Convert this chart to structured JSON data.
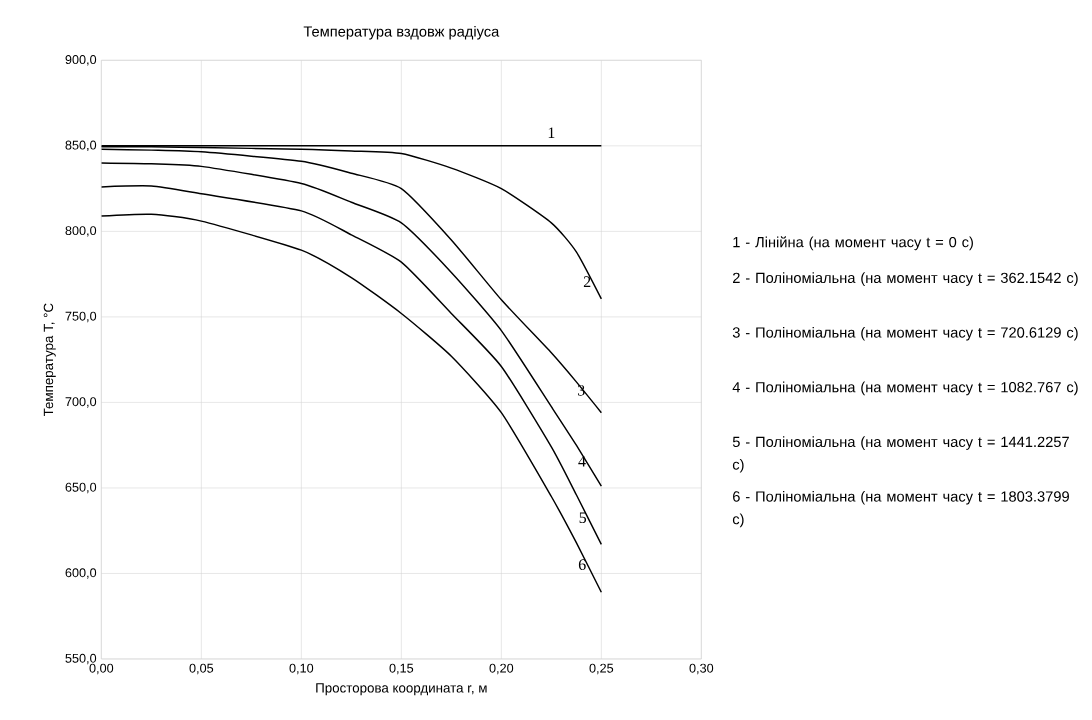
{
  "chart_data": {
    "type": "line",
    "title": "Температура вздовж радіуса",
    "xlabel": "Просторова координата r, м",
    "ylabel": "Температура T, °C",
    "x": [
      0,
      0.025,
      0.05,
      0.1,
      0.125,
      0.15,
      0.175,
      0.2,
      0.225,
      0.2375,
      0.25
    ],
    "series": [
      {
        "name": "1",
        "color": "#000000",
        "values": [
          850,
          850,
          850,
          850,
          850,
          850,
          850,
          850,
          850,
          850,
          850
        ]
      },
      {
        "name": "2",
        "color": "#000000",
        "values": [
          849.5,
          849.5,
          849,
          848,
          847,
          845.5,
          837,
          825,
          805,
          788,
          760.5
        ]
      },
      {
        "name": "3",
        "color": "#000000",
        "values": [
          848,
          847.5,
          846.5,
          841,
          834,
          825,
          795,
          760,
          729,
          712,
          694
        ]
      },
      {
        "name": "4",
        "color": "#000000",
        "values": [
          840,
          839.5,
          838,
          828,
          817,
          805,
          776,
          742,
          697.5,
          675,
          651
        ]
      },
      {
        "name": "5",
        "color": "#000000",
        "values": [
          826,
          826.5,
          822,
          812,
          798,
          782,
          752,
          721,
          674,
          646,
          617
        ]
      },
      {
        "name": "6",
        "color": "#000000",
        "values": [
          809,
          810,
          806,
          789,
          773,
          752,
          727,
          694,
          645,
          618,
          589
        ]
      }
    ],
    "xlim": [
      0,
      0.3
    ],
    "ylim": [
      550,
      900
    ],
    "xticks": [
      {
        "value": 0,
        "label": "0,00"
      },
      {
        "value": 0.05,
        "label": "0,05"
      },
      {
        "value": 0.1,
        "label": "0,10"
      },
      {
        "value": 0.15,
        "label": "0,15"
      },
      {
        "value": 0.2,
        "label": "0,20"
      },
      {
        "value": 0.25,
        "label": "0,25"
      },
      {
        "value": 0.3,
        "label": "0,30"
      }
    ],
    "yticks": [
      {
        "value": 550,
        "label": "550,0"
      },
      {
        "value": 600,
        "label": "600,0"
      },
      {
        "value": 650,
        "label": "650,0"
      },
      {
        "value": 700,
        "label": "700,0"
      },
      {
        "value": 750,
        "label": "750,0"
      },
      {
        "value": 800,
        "label": "800,0"
      },
      {
        "value": 850,
        "label": "850,0"
      },
      {
        "value": 900,
        "label": "900,0"
      }
    ],
    "grid": true,
    "line_style": "solid",
    "annotations": [
      "1 - Лінійна (на момент часу t = 0 с)",
      "2 - Поліноміальна (на момент часу t = 362.1542 с)",
      "3 - Поліноміальна (на момент часу t = 720.6129 с)",
      "4 - Поліноміальна (на момент часу t = 1082.767 с)",
      "5 - Поліноміальна (на момент часу t = 1441.2257 с)",
      "6 - Поліноміальна (на момент часу t = 1803.3799 с)"
    ]
  }
}
